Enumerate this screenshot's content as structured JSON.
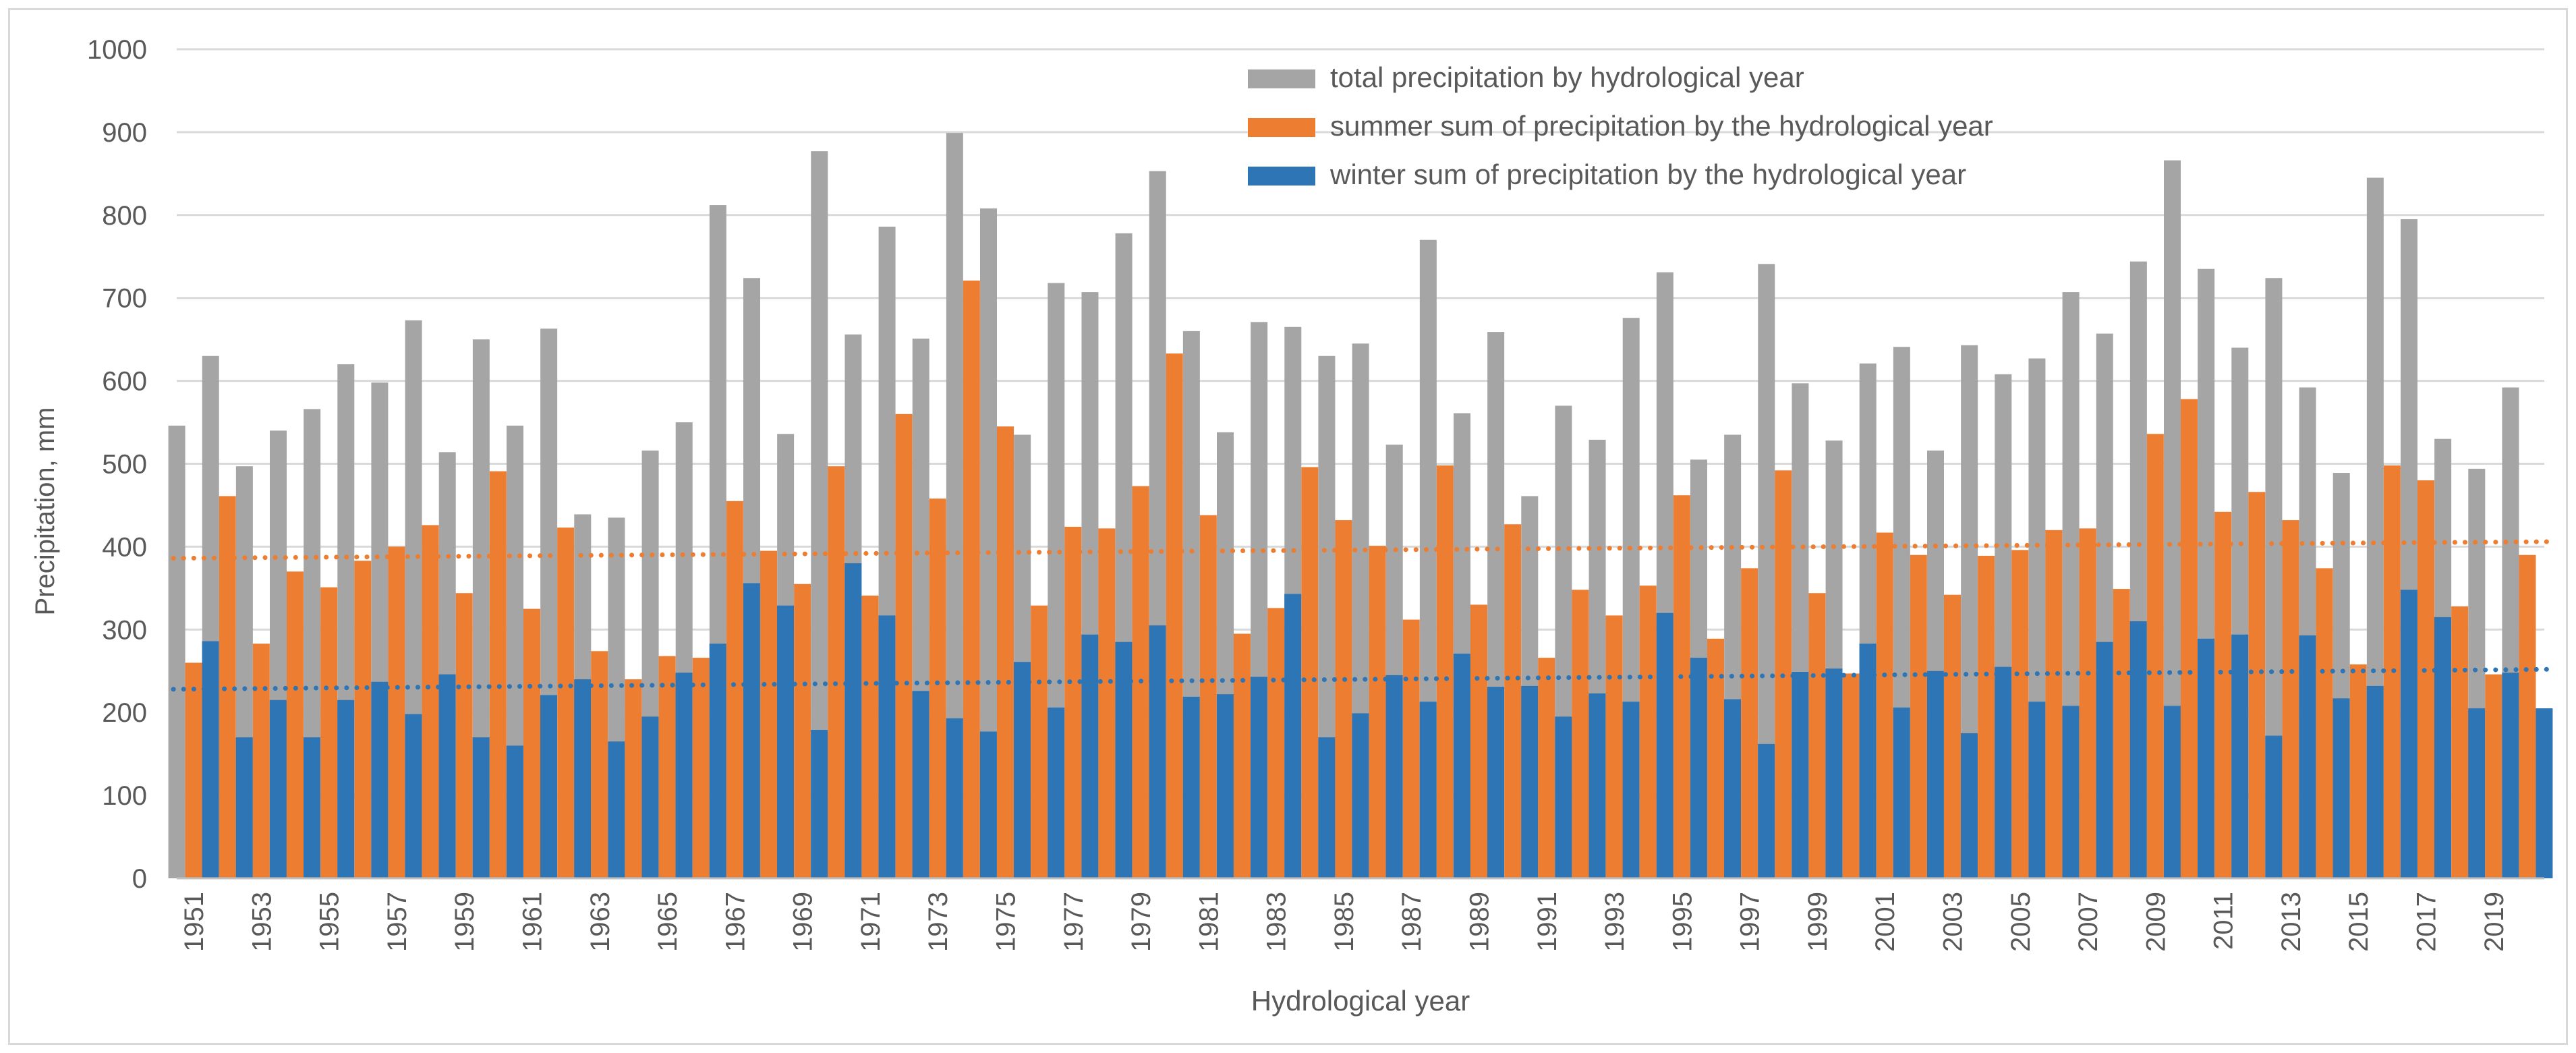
{
  "chart_data": {
    "type": "bar",
    "xlabel": "Hydrological year",
    "ylabel": "Precipitation, mm",
    "ylim": [
      0,
      1000
    ],
    "yticks": [
      0,
      100,
      200,
      300,
      400,
      500,
      600,
      700,
      800,
      900,
      1000
    ],
    "grid": "horizontal",
    "legend_position": "top-center",
    "x": [
      1951,
      1952,
      1953,
      1954,
      1955,
      1956,
      1957,
      1958,
      1959,
      1960,
      1961,
      1962,
      1963,
      1964,
      1965,
      1966,
      1967,
      1968,
      1969,
      1970,
      1971,
      1972,
      1973,
      1974,
      1975,
      1976,
      1977,
      1978,
      1979,
      1980,
      1981,
      1982,
      1983,
      1984,
      1985,
      1986,
      1987,
      1988,
      1989,
      1990,
      1991,
      1992,
      1993,
      1994,
      1995,
      1996,
      1997,
      1998,
      1999,
      2000,
      2001,
      2002,
      2003,
      2004,
      2005,
      2006,
      2007,
      2008,
      2009,
      2010,
      2011,
      2012,
      2013,
      2014,
      2015,
      2016,
      2017,
      2018,
      2019,
      2020
    ],
    "x_tick_labels": [
      "1951",
      "1953",
      "1955",
      "1957",
      "1959",
      "1961",
      "1963",
      "1965",
      "1967",
      "1969",
      "1971",
      "1973",
      "1975",
      "1977",
      "1979",
      "1981",
      "1983",
      "1985",
      "1987",
      "1989",
      "1991",
      "1993",
      "1995",
      "1997",
      "1999",
      "2001",
      "2003",
      "2005",
      "2007",
      "2009",
      "2011",
      "2013",
      "2015",
      "2017",
      "2019"
    ],
    "series": [
      {
        "name": "total precipitation by hydrological year",
        "color": "#a5a5a5",
        "values": [
          546,
          630,
          497,
          540,
          566,
          620,
          598,
          673,
          514,
          650,
          546,
          663,
          439,
          435,
          516,
          550,
          812,
          724,
          536,
          877,
          656,
          786,
          651,
          899,
          808,
          535,
          718,
          707,
          778,
          853,
          660,
          538,
          671,
          665,
          630,
          645,
          523,
          770,
          561,
          659,
          461,
          570,
          529,
          676,
          731,
          505,
          535,
          741,
          597,
          528,
          621,
          641,
          516,
          643,
          608,
          627,
          707,
          657,
          744,
          866,
          735,
          640,
          724,
          592,
          489,
          845,
          795,
          530,
          494,
          592
        ]
      },
      {
        "name": "summer sum of precipitation by the hydrological year",
        "color": "#ed7d31",
        "values": [
          260,
          461,
          283,
          370,
          351,
          383,
          400,
          426,
          344,
          491,
          325,
          423,
          274,
          240,
          268,
          266,
          455,
          395,
          355,
          497,
          341,
          560,
          458,
          721,
          545,
          329,
          424,
          422,
          473,
          633,
          438,
          295,
          326,
          496,
          432,
          401,
          312,
          498,
          330,
          427,
          266,
          348,
          317,
          353,
          462,
          289,
          374,
          492,
          344,
          247,
          417,
          390,
          342,
          389,
          396,
          420,
          422,
          349,
          536,
          578,
          442,
          466,
          432,
          374,
          258,
          498,
          480,
          328,
          246,
          390
        ]
      },
      {
        "name": "winter sum of precipitation by the hydrological year",
        "color": "#2e75b6",
        "values": [
          286,
          170,
          215,
          170,
          215,
          237,
          198,
          246,
          170,
          160,
          221,
          240,
          165,
          195,
          248,
          283,
          356,
          329,
          179,
          380,
          317,
          226,
          193,
          177,
          261,
          206,
          294,
          285,
          305,
          219,
          222,
          243,
          343,
          170,
          199,
          245,
          213,
          271,
          231,
          232,
          195,
          223,
          213,
          320,
          266,
          216,
          162,
          249,
          253,
          283,
          206,
          250,
          175,
          255,
          213,
          208,
          285,
          310,
          208,
          289,
          294,
          172,
          293,
          217,
          232,
          348,
          315,
          205,
          248,
          205
        ]
      }
    ],
    "trendlines": [
      {
        "series": "summer sum of precipitation by the hydrological year",
        "style": "dotted",
        "color": "#ed7d31",
        "start": 386,
        "end": 406
      },
      {
        "series": "winter sum of precipitation by the hydrological year",
        "style": "dotted",
        "color": "#2e75b6",
        "start": 228,
        "end": 252
      }
    ]
  }
}
